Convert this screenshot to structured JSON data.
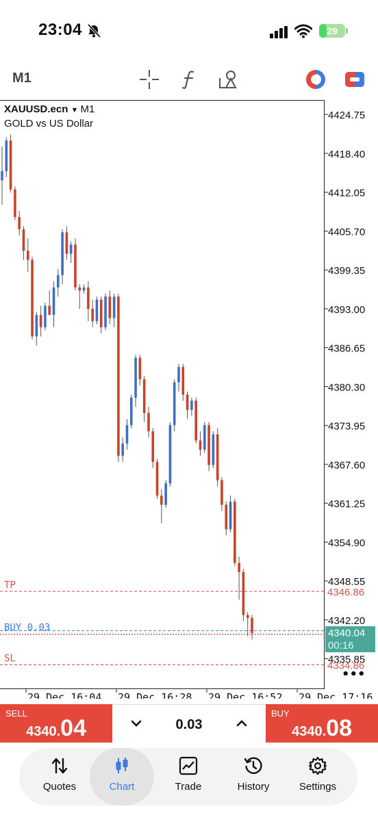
{
  "status_bar": {
    "time": "23:04",
    "battery": "29",
    "battery_level": 0.29
  },
  "toolbar": {
    "timeframe": "M1"
  },
  "chart": {
    "symbol": "XAUUSD.ecn",
    "timeframe": "M1",
    "description": "GOLD vs US Dollar",
    "lines": {
      "tp_label": "TP",
      "tp_price": "4346.86",
      "buy_label": "BUY 0.03",
      "sl_label": "SL",
      "sl_price": "4334.86"
    },
    "current_price": "4340.04",
    "countdown": "00:16",
    "more": "•••",
    "colors": {
      "bull": "#3e6fc6",
      "bear": "#c8432a",
      "tp": "#d9534f",
      "buy": "#3c7be0",
      "price_tag": "#4aa89a"
    }
  },
  "chart_data": {
    "type": "candlestick",
    "y_ticks": [
      "4424.75",
      "4418.40",
      "4412.05",
      "4405.70",
      "4399.35",
      "4393.00",
      "4386.65",
      "4380.30",
      "4373.95",
      "4367.60",
      "4361.25",
      "4354.90",
      "4348.55",
      "4342.20",
      "4335.85"
    ],
    "x_ticks": [
      "29 Dec 16:04",
      "29 Dec 16:28",
      "29 Dec 16:52",
      "29 Dec 17:16"
    ],
    "ylim": [
      4331,
      4427
    ],
    "candles": [
      [
        4414.0,
        4419.5,
        4410.0,
        4415.5
      ],
      [
        4415.5,
        4421.0,
        4414.5,
        4420.5
      ],
      [
        4420.5,
        4421.5,
        4412.0,
        4412.5
      ],
      [
        4412.5,
        4413.0,
        4407.5,
        4408.0
      ],
      [
        4408.0,
        4409.0,
        4405.0,
        4406.0
      ],
      [
        4406.0,
        4406.5,
        4401.0,
        4402.5
      ],
      [
        4402.5,
        4404.5,
        4399.0,
        4401.0
      ],
      [
        4401.0,
        4401.5,
        4388.0,
        4388.5
      ],
      [
        4388.5,
        4392.5,
        4387.0,
        4392.0
      ],
      [
        4392.0,
        4393.5,
        4388.5,
        4390.0
      ],
      [
        4390.0,
        4394.0,
        4389.5,
        4393.5
      ],
      [
        4393.5,
        4396.0,
        4392.5,
        4392.0
      ],
      [
        4392.0,
        4397.5,
        4390.0,
        4396.5
      ],
      [
        4396.5,
        4399.5,
        4395.0,
        4398.5
      ],
      [
        4398.5,
        4406.0,
        4397.0,
        4405.5
      ],
      [
        4405.5,
        4406.5,
        4401.0,
        4402.0
      ],
      [
        4402.0,
        4404.0,
        4400.5,
        4403.5
      ],
      [
        4403.5,
        4404.5,
        4396.0,
        4396.5
      ],
      [
        4396.5,
        4397.0,
        4393.0,
        4396.0
      ],
      [
        4396.0,
        4397.0,
        4395.5,
        4396.5
      ],
      [
        4396.5,
        4397.5,
        4391.0,
        4393.0
      ],
      [
        4393.0,
        4394.5,
        4390.0,
        4391.0
      ],
      [
        4391.0,
        4395.0,
        4390.5,
        4394.5
      ],
      [
        4394.5,
        4395.0,
        4389.0,
        4390.0
      ],
      [
        4390.0,
        4395.5,
        4389.5,
        4395.0
      ],
      [
        4395.0,
        4396.0,
        4390.5,
        4391.5
      ],
      [
        4391.5,
        4395.5,
        4390.0,
        4395.0
      ],
      [
        4395.0,
        4395.5,
        4368.0,
        4369.0
      ],
      [
        4369.0,
        4372.0,
        4368.0,
        4371.0
      ],
      [
        4371.0,
        4375.0,
        4370.0,
        4374.0
      ],
      [
        4374.0,
        4379.0,
        4373.5,
        4378.5
      ],
      [
        4378.5,
        4385.5,
        4377.0,
        4385.0
      ],
      [
        4385.0,
        4385.5,
        4380.5,
        4381.5
      ],
      [
        4381.5,
        4382.0,
        4374.5,
        4376.0
      ],
      [
        4376.0,
        4377.0,
        4372.0,
        4373.0
      ],
      [
        4373.0,
        4373.5,
        4367.0,
        4368.0
      ],
      [
        4368.0,
        4368.5,
        4362.0,
        4362.5
      ],
      [
        4362.5,
        4363.5,
        4358.0,
        4361.0
      ],
      [
        4361.0,
        4365.0,
        4360.5,
        4364.5
      ],
      [
        4364.5,
        4374.5,
        4364.0,
        4374.0
      ],
      [
        4374.0,
        4381.5,
        4373.0,
        4381.0
      ],
      [
        4381.0,
        4384.0,
        4379.5,
        4383.5
      ],
      [
        4383.5,
        4384.0,
        4378.0,
        4379.0
      ],
      [
        4379.0,
        4379.5,
        4375.0,
        4376.5
      ],
      [
        4376.5,
        4378.5,
        4375.5,
        4378.0
      ],
      [
        4378.0,
        4378.5,
        4371.0,
        4371.5
      ],
      [
        4371.5,
        4373.0,
        4369.0,
        4370.0
      ],
      [
        4370.0,
        4374.5,
        4369.5,
        4374.0
      ],
      [
        4374.0,
        4374.5,
        4366.5,
        4367.5
      ],
      [
        4367.5,
        4373.0,
        4367.0,
        4372.5
      ],
      [
        4372.5,
        4373.5,
        4364.0,
        4365.0
      ],
      [
        4365.0,
        4365.5,
        4360.0,
        4361.0
      ],
      [
        4361.0,
        4361.5,
        4356.0,
        4357.0
      ],
      [
        4357.0,
        4362.5,
        4356.5,
        4361.5
      ],
      [
        4361.5,
        4362.0,
        4351.0,
        4351.5
      ],
      [
        4351.5,
        4352.5,
        4345.5,
        4350.0
      ],
      [
        4350.0,
        4350.5,
        4342.0,
        4343.0
      ],
      [
        4343.0,
        4343.5,
        4339.5,
        4342.5
      ],
      [
        4342.5,
        4343.0,
        4339.0,
        4340.04
      ]
    ]
  },
  "trade": {
    "sell_label": "SELL",
    "sell_price_main": "4340.",
    "sell_price_big": "04",
    "volume": "0.03",
    "buy_label": "BUY",
    "buy_price_main": "4340.",
    "buy_price_big": "08"
  },
  "nav": {
    "items": [
      {
        "label": "Quotes",
        "icon": "quotes-icon"
      },
      {
        "label": "Chart",
        "icon": "chart-icon"
      },
      {
        "label": "Trade",
        "icon": "trade-icon"
      },
      {
        "label": "History",
        "icon": "history-icon"
      },
      {
        "label": "Settings",
        "icon": "settings-icon"
      }
    ],
    "active": "Chart"
  }
}
